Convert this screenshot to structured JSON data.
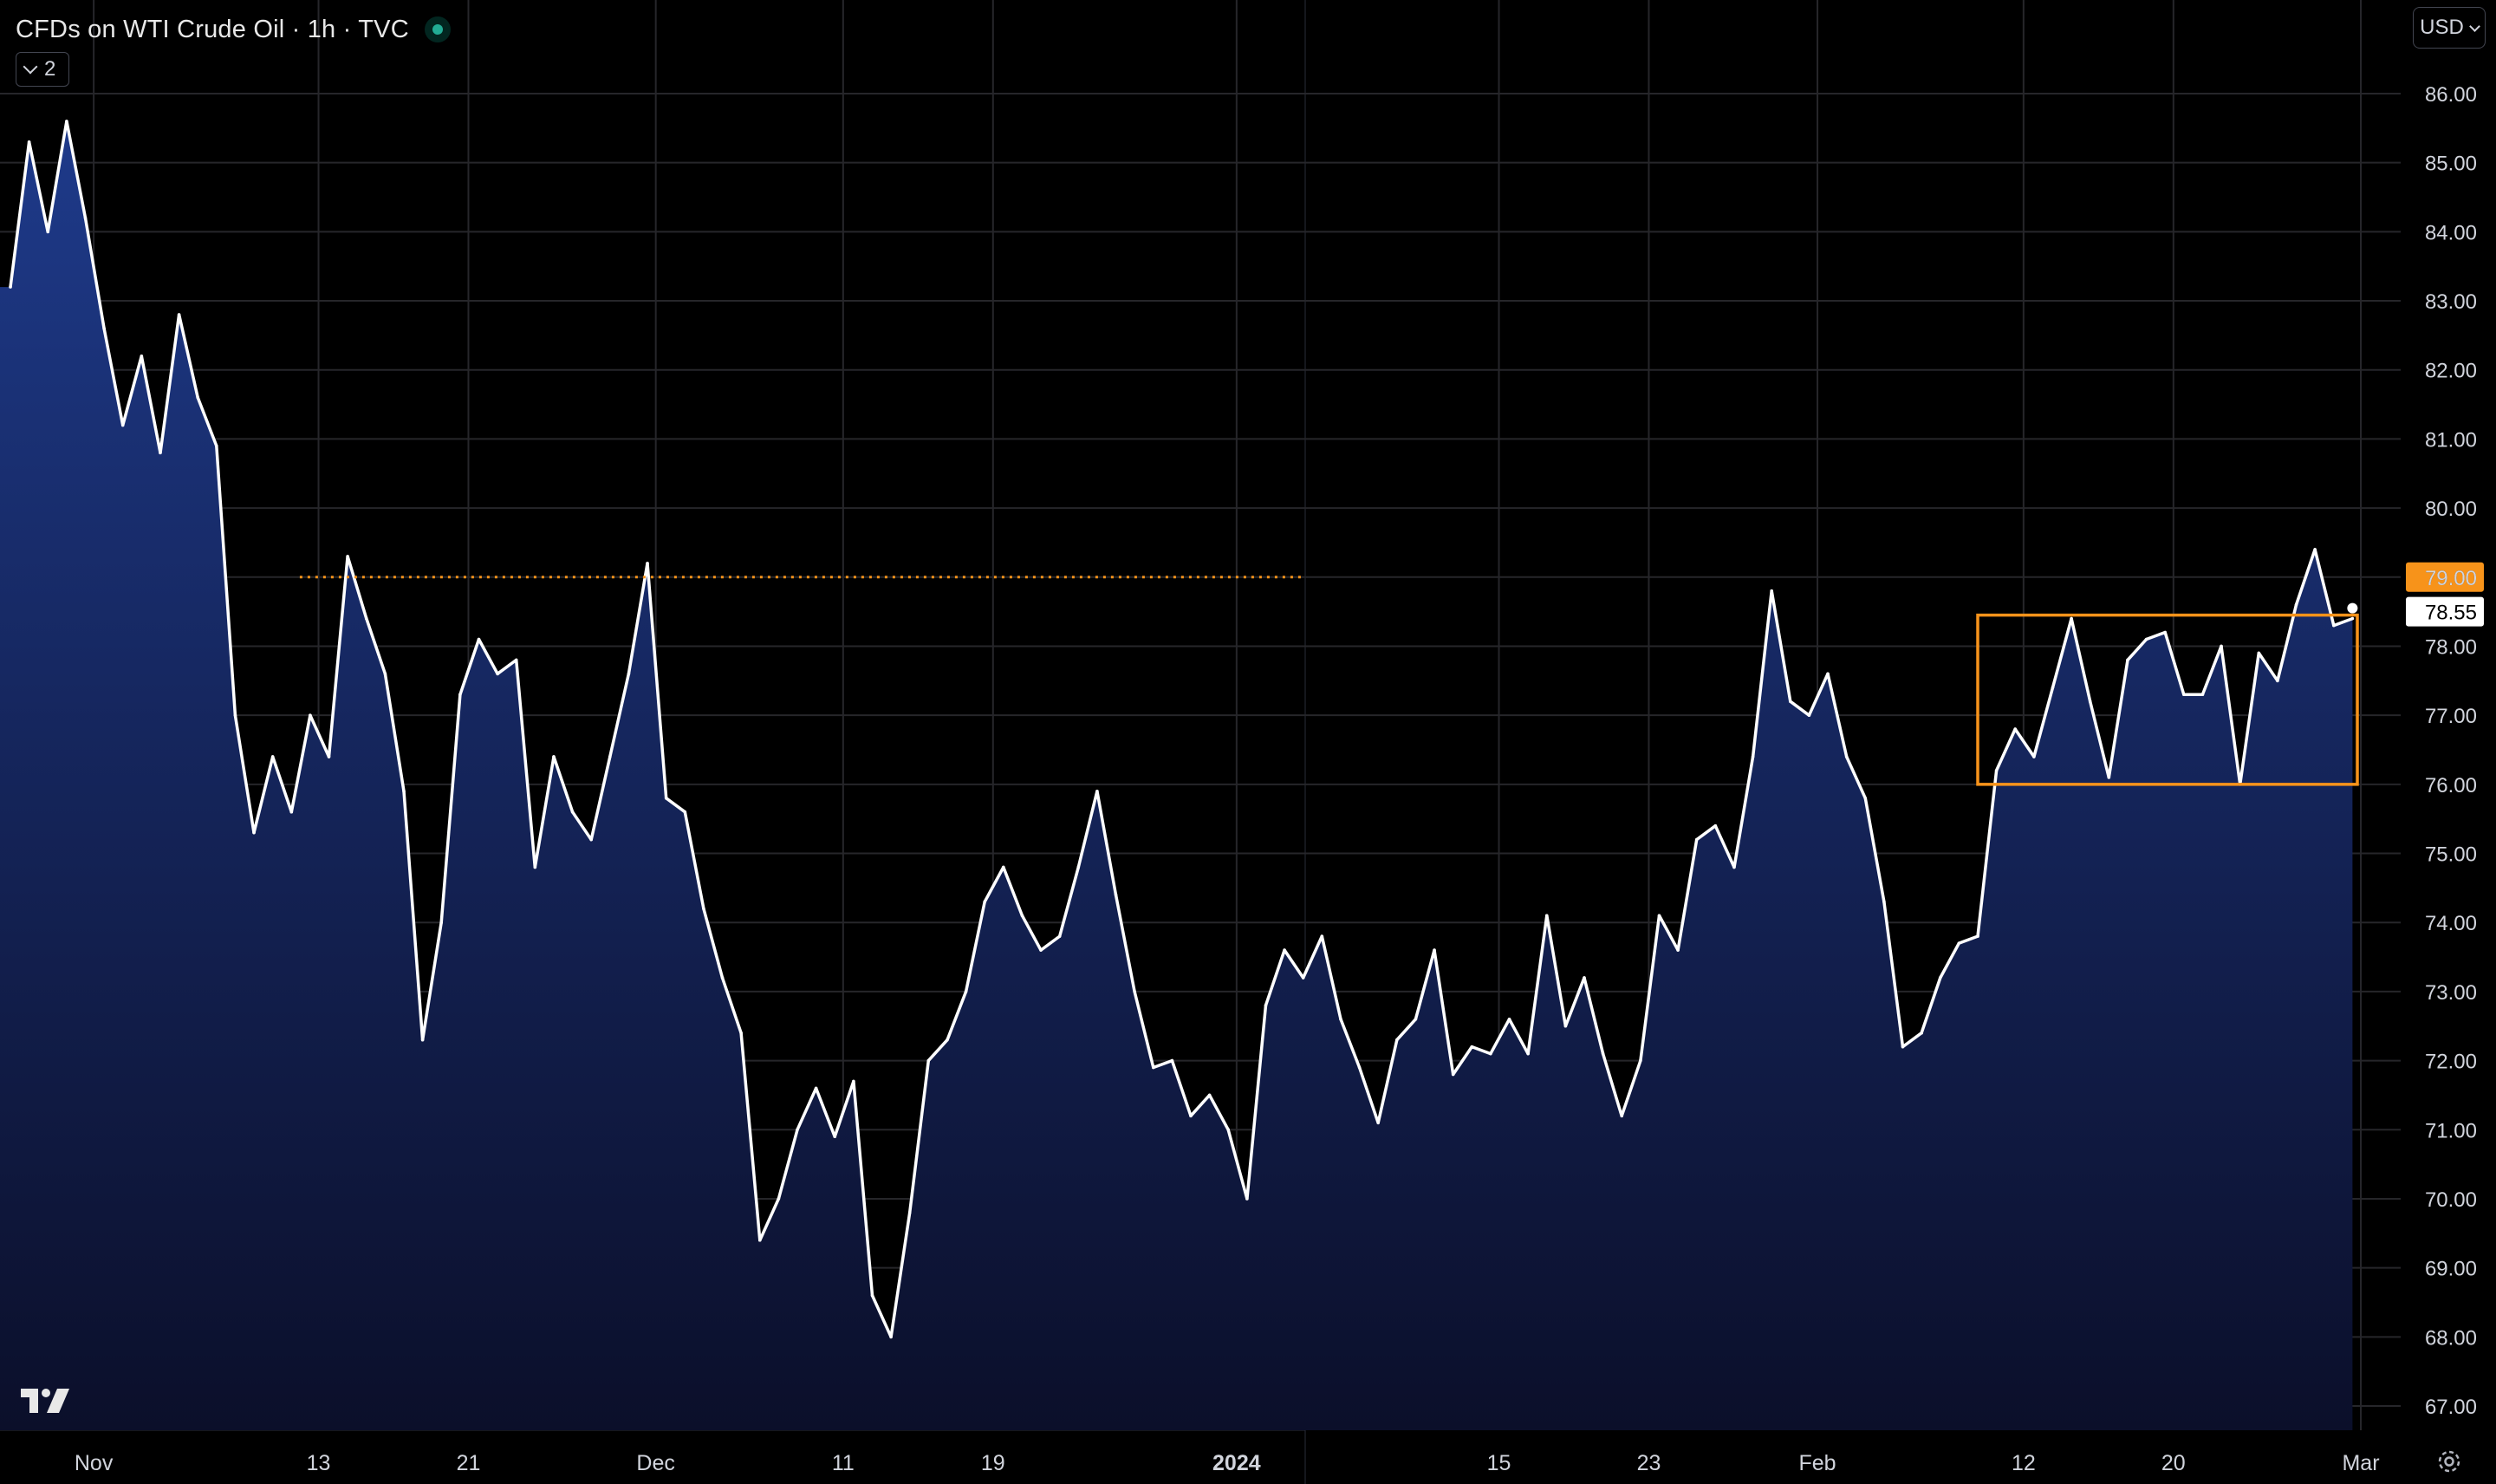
{
  "header": {
    "title": "CFDs on WTI Crude Oil · 1h · TVC",
    "indicators_count": "2",
    "currency": "USD"
  },
  "colors": {
    "line": "#ffffff",
    "area_top": "#1e3a8a",
    "area_bottom": "#0b0f2a",
    "grid": "#26262a",
    "level": "#f7931a",
    "background": "#000000"
  },
  "icons": [
    "tradingview-logo-icon",
    "chevron-down-icon",
    "gear-icon"
  ],
  "chart_data": {
    "type": "area",
    "ylim": [
      67,
      86.5
    ],
    "yticks": [
      "86.00",
      "85.00",
      "84.00",
      "83.00",
      "82.00",
      "81.00",
      "80.00",
      "79.00",
      "78.00",
      "77.00",
      "76.00",
      "75.00",
      "74.00",
      "73.00",
      "72.00",
      "71.00",
      "70.00",
      "69.00",
      "68.00",
      "67.00"
    ],
    "x_ticks": [
      {
        "label": "Nov",
        "date": "2023-11-01"
      },
      {
        "label": "13",
        "date": "2023-11-13"
      },
      {
        "label": "21",
        "date": "2023-11-21"
      },
      {
        "label": "Dec",
        "date": "2023-12-01"
      },
      {
        "label": "11",
        "date": "2023-12-11"
      },
      {
        "label": "19",
        "date": "2023-12-19"
      },
      {
        "label": "2024",
        "date": "2024-01-01"
      },
      {
        "label": "15",
        "date": "2024-01-15"
      },
      {
        "label": "23",
        "date": "2024-01-23"
      },
      {
        "label": "Feb",
        "date": "2024-02-01"
      },
      {
        "label": "12",
        "date": "2024-02-12"
      },
      {
        "label": "20",
        "date": "2024-02-20"
      },
      {
        "label": "Mar",
        "date": "2024-03-01"
      }
    ],
    "x_range": [
      "2023-10-27",
      "2024-03-01"
    ],
    "series": [
      {
        "x": [
          "2023-10-27",
          "2023-10-28",
          "2023-10-29",
          "2023-10-30",
          "2023-10-31",
          "2023-11-01",
          "2023-11-02",
          "2023-11-03",
          "2023-11-04",
          "2023-11-05",
          "2023-11-06",
          "2023-11-07",
          "2023-11-08",
          "2023-11-09",
          "2023-11-10",
          "2023-11-11",
          "2023-11-12",
          "2023-11-13",
          "2023-11-14",
          "2023-11-15",
          "2023-11-16",
          "2023-11-17",
          "2023-11-18",
          "2023-11-19",
          "2023-11-20",
          "2023-11-21",
          "2023-11-22",
          "2023-11-23",
          "2023-11-24",
          "2023-11-25",
          "2023-11-26",
          "2023-11-27",
          "2023-11-28",
          "2023-11-29",
          "2023-11-30",
          "2023-12-01",
          "2023-12-02",
          "2023-12-03",
          "2023-12-04",
          "2023-12-05",
          "2023-12-06",
          "2023-12-07",
          "2023-12-08",
          "2023-12-09",
          "2023-12-10",
          "2023-12-11",
          "2023-12-12",
          "2023-12-13",
          "2023-12-14",
          "2023-12-15",
          "2023-12-16",
          "2023-12-17",
          "2023-12-18",
          "2023-12-19",
          "2023-12-20",
          "2023-12-21",
          "2023-12-22",
          "2023-12-23",
          "2023-12-24",
          "2023-12-25",
          "2023-12-26",
          "2023-12-27",
          "2023-12-28",
          "2023-12-29",
          "2023-12-30",
          "2023-12-31",
          "2024-01-01",
          "2024-01-02",
          "2024-01-03",
          "2024-01-04",
          "2024-01-05",
          "2024-01-06",
          "2024-01-07",
          "2024-01-08",
          "2024-01-09",
          "2024-01-10",
          "2024-01-11",
          "2024-01-12",
          "2024-01-13",
          "2024-01-14",
          "2024-01-15",
          "2024-01-16",
          "2024-01-17",
          "2024-01-18",
          "2024-01-19",
          "2024-01-20",
          "2024-01-21",
          "2024-01-22",
          "2024-01-23",
          "2024-01-24",
          "2024-01-25",
          "2024-01-26",
          "2024-01-27",
          "2024-01-28",
          "2024-01-29",
          "2024-01-30",
          "2024-01-31",
          "2024-02-01",
          "2024-02-02",
          "2024-02-03",
          "2024-02-04",
          "2024-02-05",
          "2024-02-06",
          "2024-02-07",
          "2024-02-08",
          "2024-02-09",
          "2024-02-10",
          "2024-02-11",
          "2024-02-12",
          "2024-02-13",
          "2024-02-14",
          "2024-02-15",
          "2024-02-16",
          "2024-02-17",
          "2024-02-18",
          "2024-02-19",
          "2024-02-20",
          "2024-02-21",
          "2024-02-22",
          "2024-02-23",
          "2024-02-24",
          "2024-02-25",
          "2024-02-26",
          "2024-02-27",
          "2024-02-28",
          "2024-02-29"
        ],
        "values": [
          83.2,
          85.3,
          84.0,
          85.6,
          84.2,
          82.6,
          81.2,
          82.2,
          80.8,
          82.8,
          81.6,
          80.9,
          77.0,
          75.3,
          76.4,
          75.6,
          77.0,
          76.4,
          79.3,
          78.4,
          77.6,
          75.9,
          72.3,
          74.0,
          77.3,
          78.1,
          77.6,
          77.8,
          74.8,
          76.4,
          75.6,
          75.2,
          76.4,
          77.6,
          79.2,
          75.8,
          75.6,
          74.2,
          73.2,
          72.4,
          69.4,
          70.0,
          71.0,
          71.6,
          70.9,
          71.7,
          68.6,
          68.0,
          69.8,
          72.0,
          72.3,
          73.0,
          74.3,
          74.8,
          74.1,
          73.6,
          73.8,
          74.8,
          75.9,
          74.4,
          73.0,
          71.9,
          72.0,
          71.2,
          71.5,
          71.0,
          70.0,
          72.8,
          73.6,
          73.2,
          73.8,
          72.6,
          71.9,
          71.1,
          72.3,
          72.6,
          73.6,
          71.8,
          72.2,
          72.1,
          72.6,
          72.1,
          74.1,
          72.5,
          73.2,
          72.1,
          71.2,
          72.0,
          74.1,
          73.6,
          75.2,
          75.4,
          74.8,
          76.4,
          78.8,
          77.2,
          77.0,
          77.6,
          76.4,
          75.8,
          74.3,
          72.2,
          72.4,
          73.2,
          73.7,
          73.8,
          76.2,
          76.8,
          76.4,
          77.4,
          78.4,
          77.2,
          76.1,
          77.8,
          78.1,
          78.2,
          77.3,
          77.3,
          78.0,
          76.0,
          77.9,
          77.5,
          78.6,
          79.4,
          78.3,
          78.4
        ]
      }
    ],
    "levels": [
      {
        "value": 79.0,
        "label": "79.00",
        "from": "2023-11-12",
        "style": "dotted"
      }
    ],
    "range_box": {
      "x_start": "2024-02-09",
      "x_end": "2024-03-01",
      "y_low": 76.0,
      "y_high": 78.45
    },
    "last_price": {
      "value": 78.55,
      "label": "78.55"
    },
    "grid": true
  }
}
